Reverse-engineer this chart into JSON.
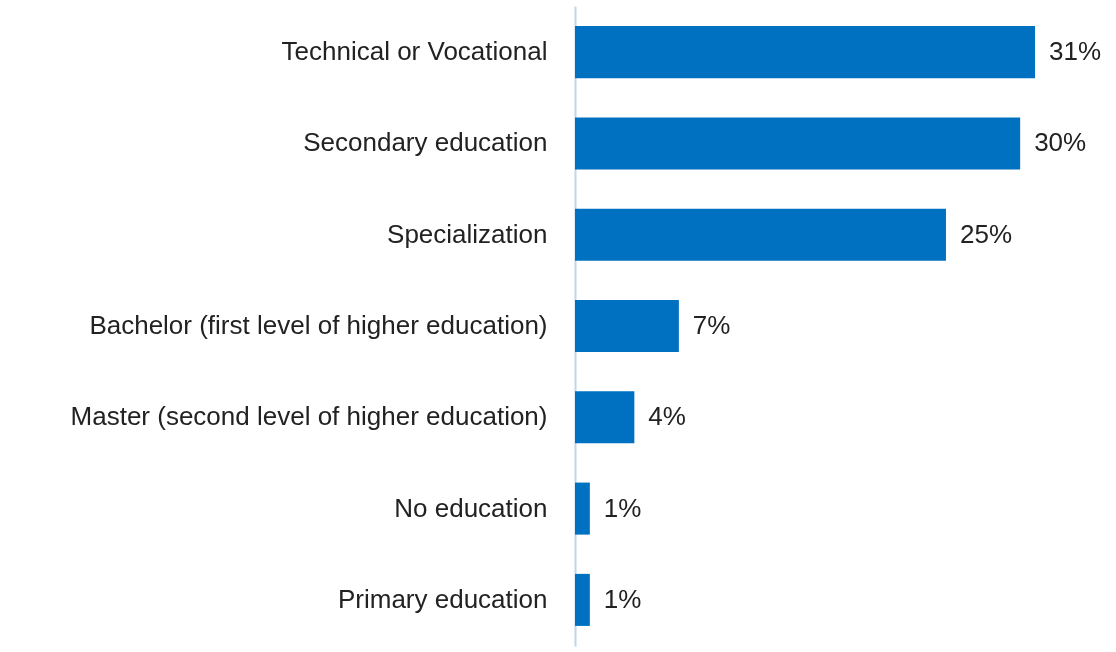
{
  "chart_data": {
    "type": "bar",
    "orientation": "horizontal",
    "categories": [
      "Technical or Vocational",
      "Secondary education",
      "Specialization",
      "Bachelor (first level of higher education)",
      "Master (second level of higher education)",
      "No education",
      "Primary education"
    ],
    "values": [
      31,
      30,
      25,
      7,
      4,
      1,
      1
    ],
    "value_labels": [
      "31%",
      "30%",
      "25%",
      "7%",
      "4%",
      "1%",
      "1%"
    ],
    "color": "#0070c0"
  }
}
